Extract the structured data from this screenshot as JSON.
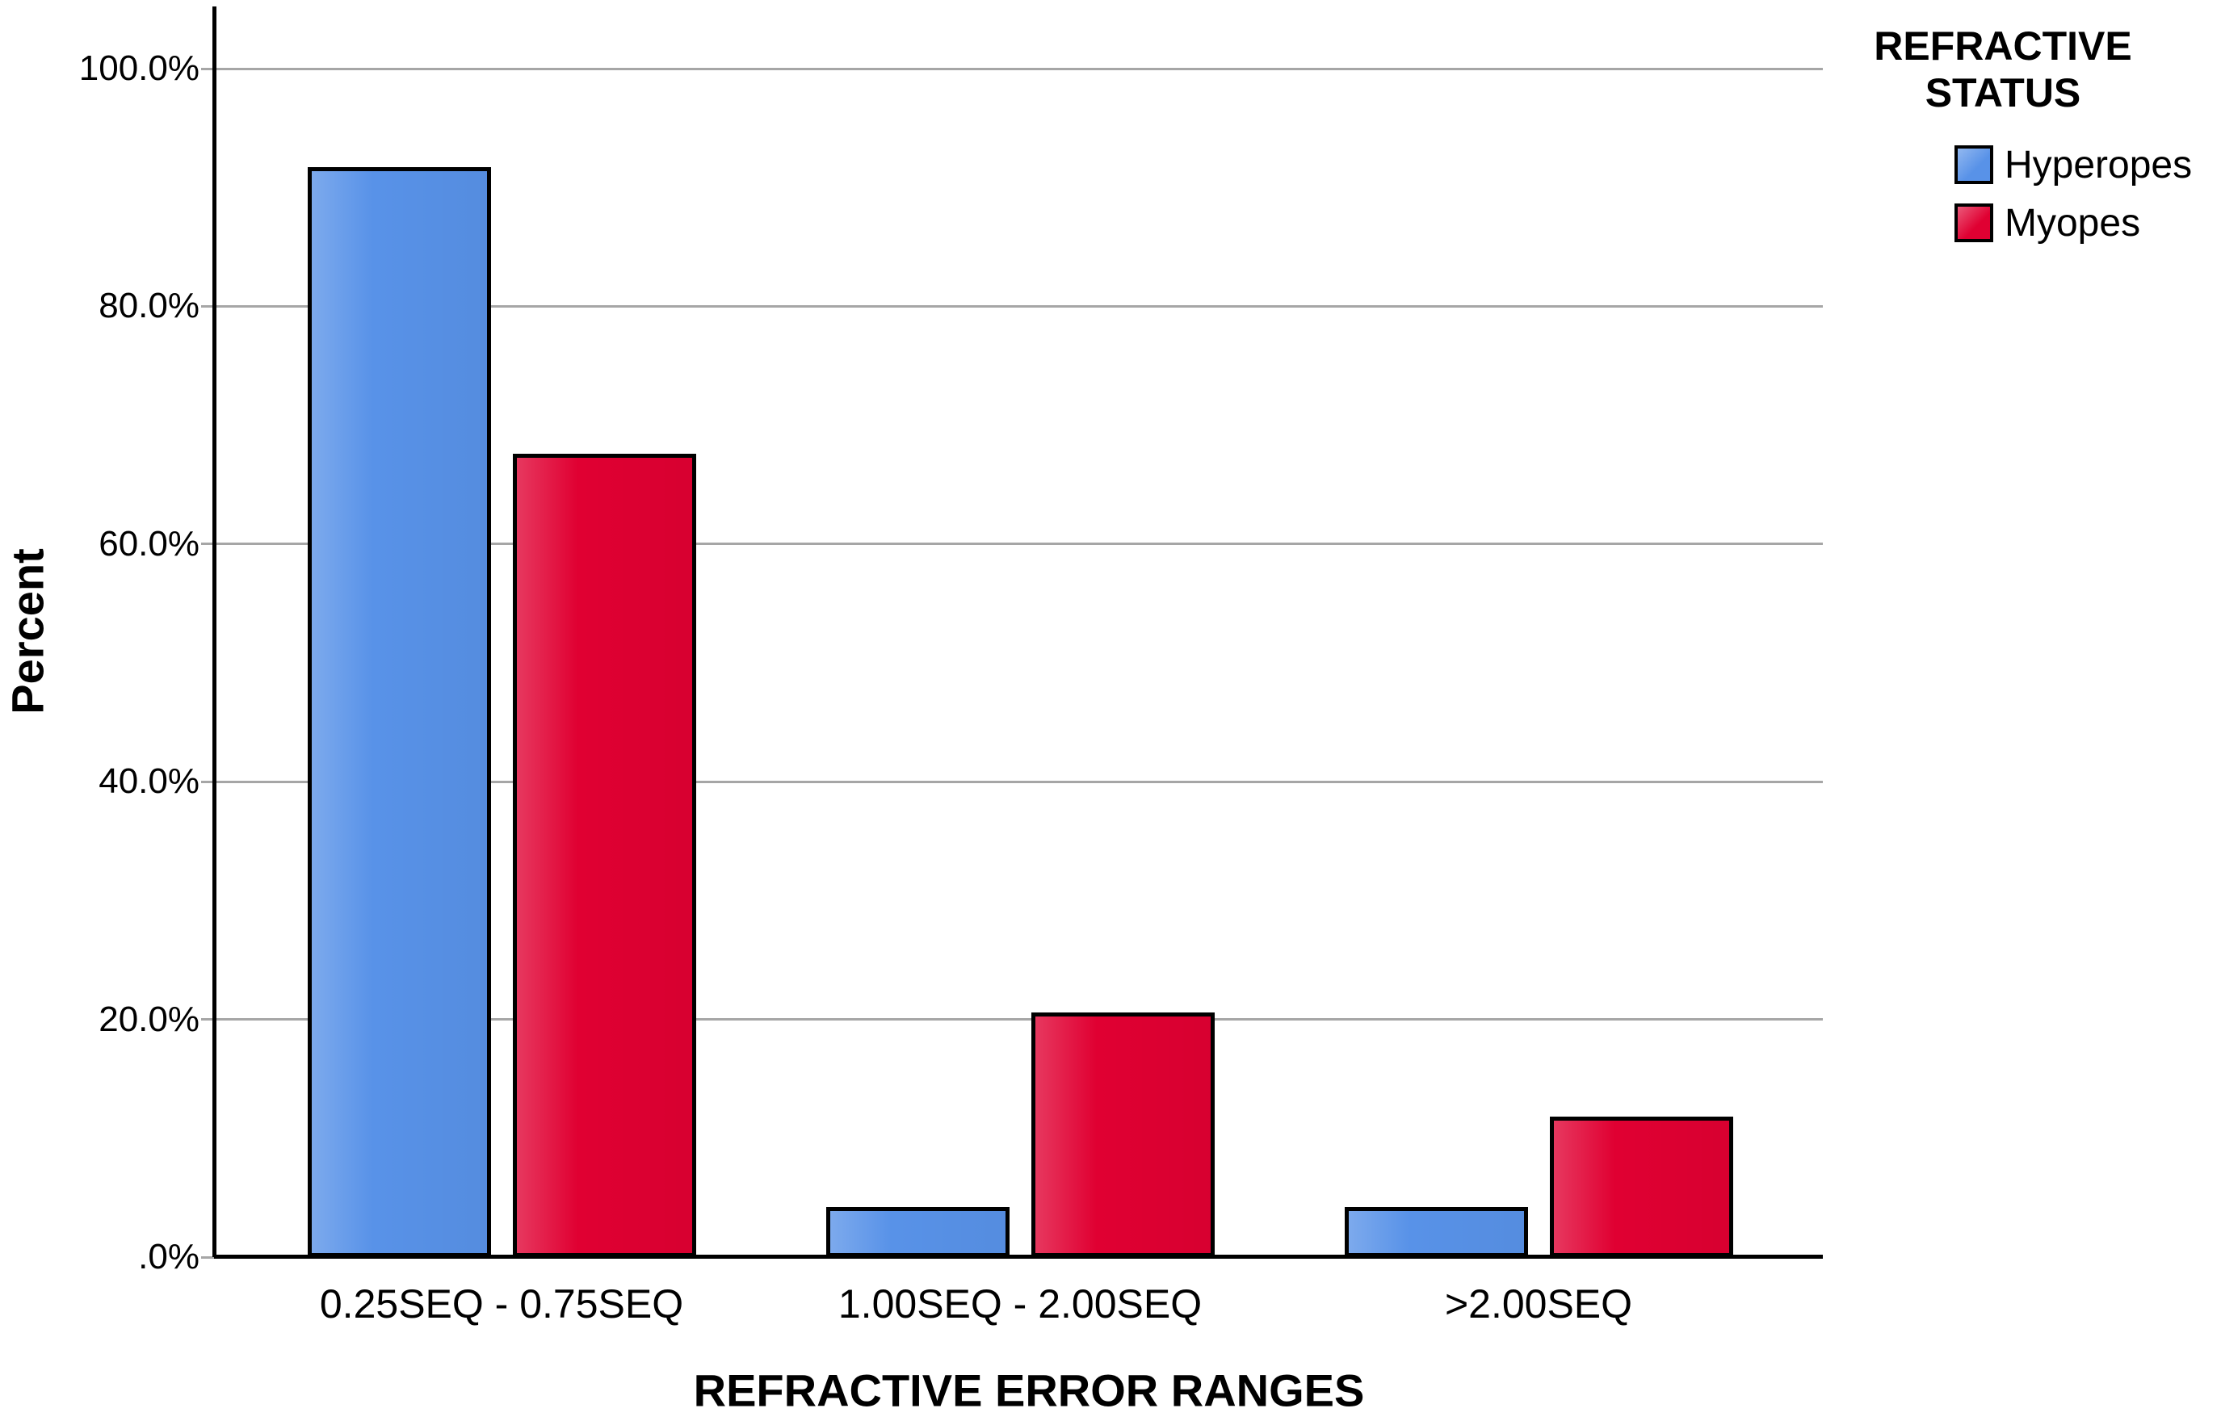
{
  "chart_data": {
    "type": "bar",
    "categories": [
      "0.25SEQ - 0.75SEQ",
      "1.00SEQ - 2.00SEQ",
      ">2.00SEQ"
    ],
    "series": [
      {
        "name": "Hyperopes",
        "color": "#5892E8",
        "values": [
          91.7,
          4.2,
          4.2
        ]
      },
      {
        "name": "Myopes",
        "color": "#E00032",
        "values": [
          67.6,
          20.6,
          11.8
        ]
      }
    ],
    "xlabel": "REFRACTIVE ERROR RANGES",
    "ylabel": "Percent",
    "ylim": [
      0,
      105
    ],
    "yticks": [
      {
        "value": 0,
        "label": ".0%"
      },
      {
        "value": 20,
        "label": "20.0%"
      },
      {
        "value": 40,
        "label": "40.0%"
      },
      {
        "value": 60,
        "label": "60.0%"
      },
      {
        "value": 80,
        "label": "80.0%"
      },
      {
        "value": 100,
        "label": "100.0%"
      }
    ],
    "legend": {
      "title_lines": [
        "REFRACTIVE",
        "STATUS"
      ],
      "position": "top-right"
    },
    "grid": true,
    "colors": {
      "gridline": "#A6A6A6",
      "axis": "#000000",
      "background": "#FFFFFF"
    }
  }
}
